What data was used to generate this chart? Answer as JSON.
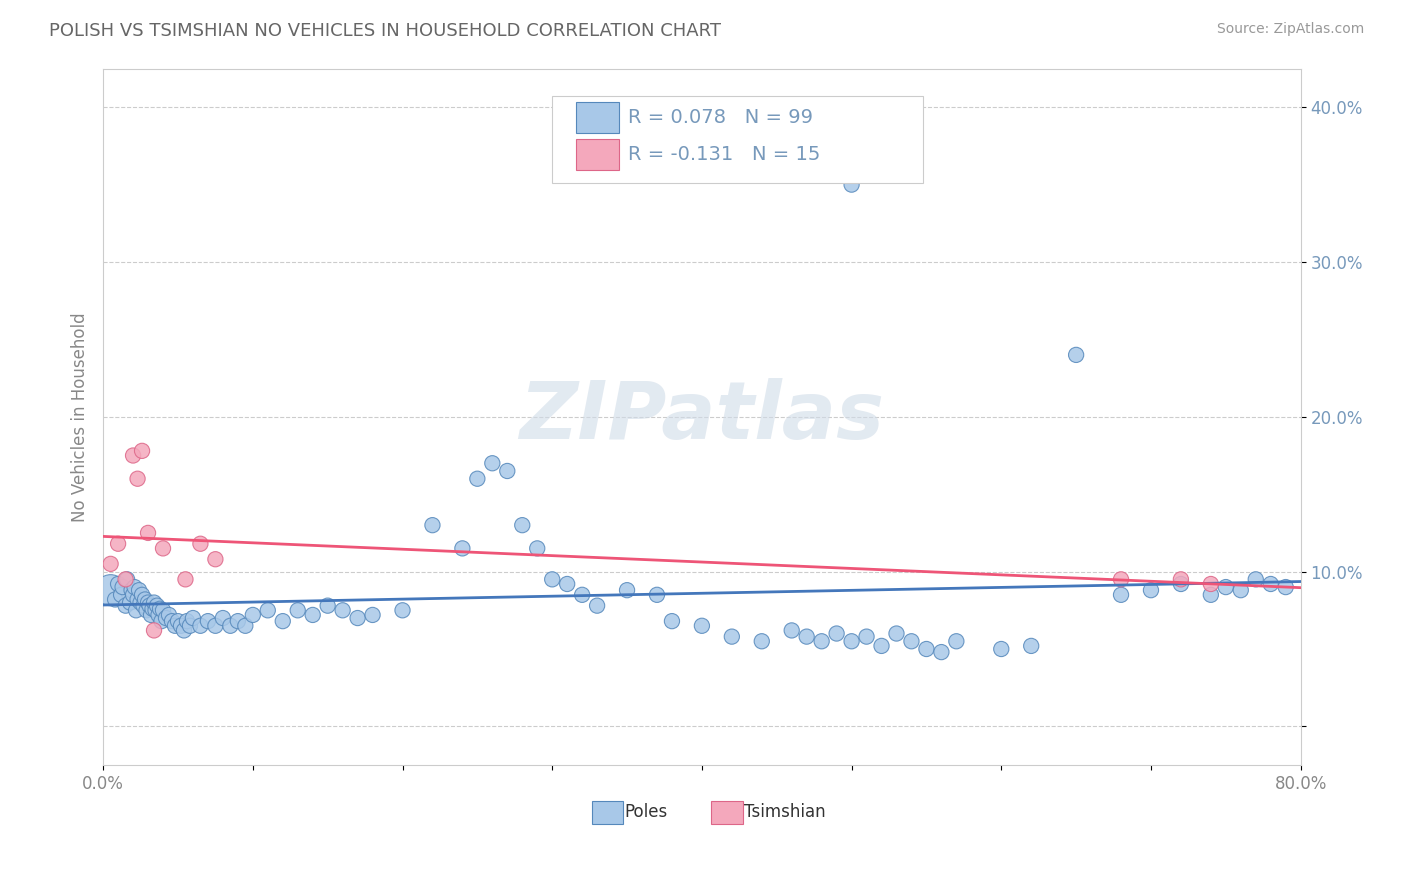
{
  "title": "POLISH VS TSIMSHIAN NO VEHICLES IN HOUSEHOLD CORRELATION CHART",
  "source": "Source: ZipAtlas.com",
  "ylabel": "No Vehicles in Household",
  "xlim": [
    0.0,
    0.8
  ],
  "ylim": [
    -0.025,
    0.425
  ],
  "x_tick_positions": [
    0.0,
    0.1,
    0.2,
    0.3,
    0.4,
    0.5,
    0.6,
    0.7,
    0.8
  ],
  "x_tick_labels": [
    "0.0%",
    "",
    "",
    "",
    "",
    "",
    "",
    "",
    "80.0%"
  ],
  "y_tick_positions": [
    0.0,
    0.1,
    0.2,
    0.3,
    0.4
  ],
  "y_tick_labels": [
    "",
    "10.0%",
    "20.0%",
    "30.0%",
    "40.0%"
  ],
  "poles_color": "#a8c8e8",
  "tsimshian_color": "#f4a8bc",
  "poles_edge_color": "#5588bb",
  "tsimshian_edge_color": "#dd6688",
  "poles_trend_color": "#4477bb",
  "tsimshian_trend_color": "#ee5577",
  "legend_poles_R": "R = 0.078",
  "legend_poles_N": "N = 99",
  "legend_tsimshian_R": "R = -0.131",
  "legend_tsimshian_N": "N = 15",
  "poles_x": [
    0.005,
    0.008,
    0.01,
    0.012,
    0.013,
    0.015,
    0.016,
    0.018,
    0.019,
    0.02,
    0.021,
    0.022,
    0.023,
    0.024,
    0.025,
    0.026,
    0.027,
    0.028,
    0.029,
    0.03,
    0.031,
    0.032,
    0.033,
    0.034,
    0.035,
    0.036,
    0.037,
    0.038,
    0.039,
    0.04,
    0.042,
    0.044,
    0.046,
    0.048,
    0.05,
    0.052,
    0.054,
    0.056,
    0.058,
    0.06,
    0.065,
    0.07,
    0.075,
    0.08,
    0.085,
    0.09,
    0.095,
    0.1,
    0.11,
    0.12,
    0.13,
    0.14,
    0.15,
    0.16,
    0.17,
    0.18,
    0.2,
    0.22,
    0.24,
    0.25,
    0.26,
    0.27,
    0.28,
    0.29,
    0.3,
    0.31,
    0.32,
    0.33,
    0.35,
    0.37,
    0.38,
    0.4,
    0.42,
    0.44,
    0.46,
    0.47,
    0.48,
    0.49,
    0.5,
    0.51,
    0.52,
    0.53,
    0.54,
    0.55,
    0.56,
    0.57,
    0.6,
    0.62,
    0.65,
    0.68,
    0.7,
    0.72,
    0.74,
    0.75,
    0.76,
    0.77,
    0.78,
    0.79,
    0.5
  ],
  "poles_y": [
    0.088,
    0.082,
    0.092,
    0.085,
    0.09,
    0.078,
    0.095,
    0.08,
    0.088,
    0.085,
    0.09,
    0.075,
    0.082,
    0.088,
    0.08,
    0.085,
    0.078,
    0.082,
    0.075,
    0.08,
    0.078,
    0.072,
    0.076,
    0.08,
    0.075,
    0.078,
    0.072,
    0.076,
    0.068,
    0.075,
    0.07,
    0.072,
    0.068,
    0.065,
    0.068,
    0.065,
    0.062,
    0.068,
    0.065,
    0.07,
    0.065,
    0.068,
    0.065,
    0.07,
    0.065,
    0.068,
    0.065,
    0.072,
    0.075,
    0.068,
    0.075,
    0.072,
    0.078,
    0.075,
    0.07,
    0.072,
    0.075,
    0.13,
    0.115,
    0.16,
    0.17,
    0.165,
    0.13,
    0.115,
    0.095,
    0.092,
    0.085,
    0.078,
    0.088,
    0.085,
    0.068,
    0.065,
    0.058,
    0.055,
    0.062,
    0.058,
    0.055,
    0.06,
    0.055,
    0.058,
    0.052,
    0.06,
    0.055,
    0.05,
    0.048,
    0.055,
    0.05,
    0.052,
    0.24,
    0.085,
    0.088,
    0.092,
    0.085,
    0.09,
    0.088,
    0.095,
    0.092,
    0.09,
    0.35
  ],
  "poles_size": [
    500,
    120,
    120,
    120,
    120,
    120,
    120,
    120,
    120,
    120,
    120,
    120,
    120,
    120,
    120,
    120,
    120,
    120,
    120,
    120,
    120,
    120,
    120,
    120,
    120,
    120,
    120,
    120,
    120,
    120,
    120,
    120,
    120,
    120,
    120,
    120,
    120,
    120,
    120,
    120,
    120,
    120,
    120,
    120,
    120,
    120,
    120,
    120,
    120,
    120,
    120,
    120,
    120,
    120,
    120,
    120,
    120,
    120,
    120,
    120,
    120,
    120,
    120,
    120,
    120,
    120,
    120,
    120,
    120,
    120,
    120,
    120,
    120,
    120,
    120,
    120,
    120,
    120,
    120,
    120,
    120,
    120,
    120,
    120,
    120,
    120,
    120,
    120,
    120,
    120,
    120,
    120,
    120,
    120,
    120,
    120,
    120,
    120,
    120
  ],
  "tsimshian_x": [
    0.005,
    0.01,
    0.015,
    0.02,
    0.023,
    0.026,
    0.03,
    0.034,
    0.04,
    0.055,
    0.065,
    0.075,
    0.68,
    0.72,
    0.74
  ],
  "tsimshian_y": [
    0.105,
    0.118,
    0.095,
    0.175,
    0.16,
    0.178,
    0.125,
    0.062,
    0.115,
    0.095,
    0.118,
    0.108,
    0.095,
    0.095,
    0.092
  ],
  "tsimshian_size": [
    120,
    120,
    120,
    120,
    120,
    120,
    120,
    120,
    120,
    120,
    120,
    120,
    120,
    120,
    120
  ],
  "watermark_text": "ZIPatlas",
  "background_color": "#ffffff",
  "grid_color": "#cccccc",
  "label_color": "#7799bb",
  "tick_color": "#888888",
  "title_color": "#666666",
  "spine_color": "#cccccc"
}
